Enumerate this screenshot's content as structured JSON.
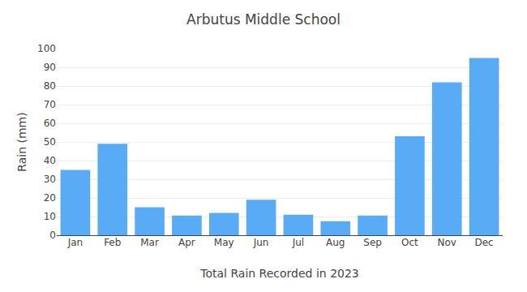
{
  "chart_data": {
    "type": "bar",
    "title": "Arbutus Middle School",
    "xlabel": "Total Rain Recorded in 2023",
    "ylabel": "Rain (mm)",
    "categories": [
      "Jan",
      "Feb",
      "Mar",
      "Apr",
      "May",
      "Jun",
      "Jul",
      "Aug",
      "Sep",
      "Oct",
      "Nov",
      "Dec"
    ],
    "values": [
      35,
      49,
      15,
      10.5,
      12,
      19,
      11,
      7.5,
      10.5,
      53,
      82,
      95
    ],
    "color": "#5aabf5",
    "ylim": [
      0,
      100
    ],
    "yticks": [
      0,
      10,
      20,
      30,
      40,
      50,
      60,
      70,
      80,
      90,
      100
    ],
    "grid": true
  }
}
